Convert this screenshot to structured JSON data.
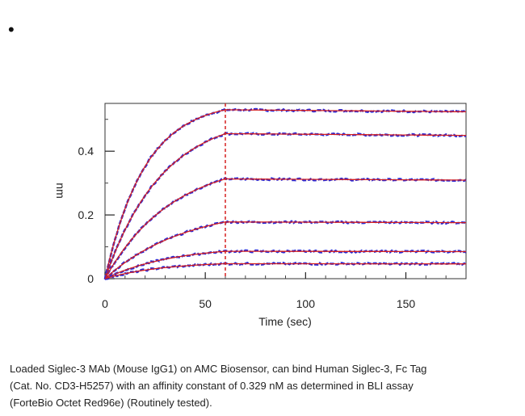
{
  "bullet": "•",
  "chart_data": {
    "type": "line",
    "title": "",
    "xlabel": "Time (sec)",
    "ylabel": "nm",
    "xlim": [
      0,
      180
    ],
    "ylim": [
      0,
      0.55
    ],
    "x_ticks": [
      0,
      50,
      100,
      150
    ],
    "y_ticks": [
      0,
      0.2,
      0.4
    ],
    "x_tick_labels": [
      "0",
      "50",
      "100",
      "150"
    ],
    "y_tick_labels": [
      "0",
      "0.2",
      "0.4"
    ],
    "association_end": 60,
    "marker_line": {
      "x": 60,
      "style": "dashed",
      "color": "#d62020"
    },
    "grid": false,
    "legend": "none",
    "colors": {
      "measured": "#2b2bd6",
      "fit": "#d62020"
    },
    "series": [
      {
        "plateau": 0.53,
        "kon": 0.05,
        "koff": 0.0001
      },
      {
        "plateau": 0.455,
        "kon": 0.035,
        "koff": 0.0001
      },
      {
        "plateau": 0.313,
        "kon": 0.03,
        "koff": 0.0001
      },
      {
        "plateau": 0.178,
        "kon": 0.025,
        "koff": 0.0001
      },
      {
        "plateau": 0.086,
        "kon": 0.03,
        "koff": 0.0001
      },
      {
        "plateau": 0.047,
        "kon": 0.035,
        "koff": 0.0001
      }
    ]
  },
  "caption": {
    "line1": "Loaded Siglec-3 MAb (Mouse IgG1) on AMC Biosensor, can bind Human Siglec-3, Fc Tag",
    "line2": "(Cat. No. CD3-H5257) with an affinity constant of 0.329 nM as determined in BLI assay",
    "line3": "(ForteBio Octet Red96e) (Routinely tested)."
  }
}
